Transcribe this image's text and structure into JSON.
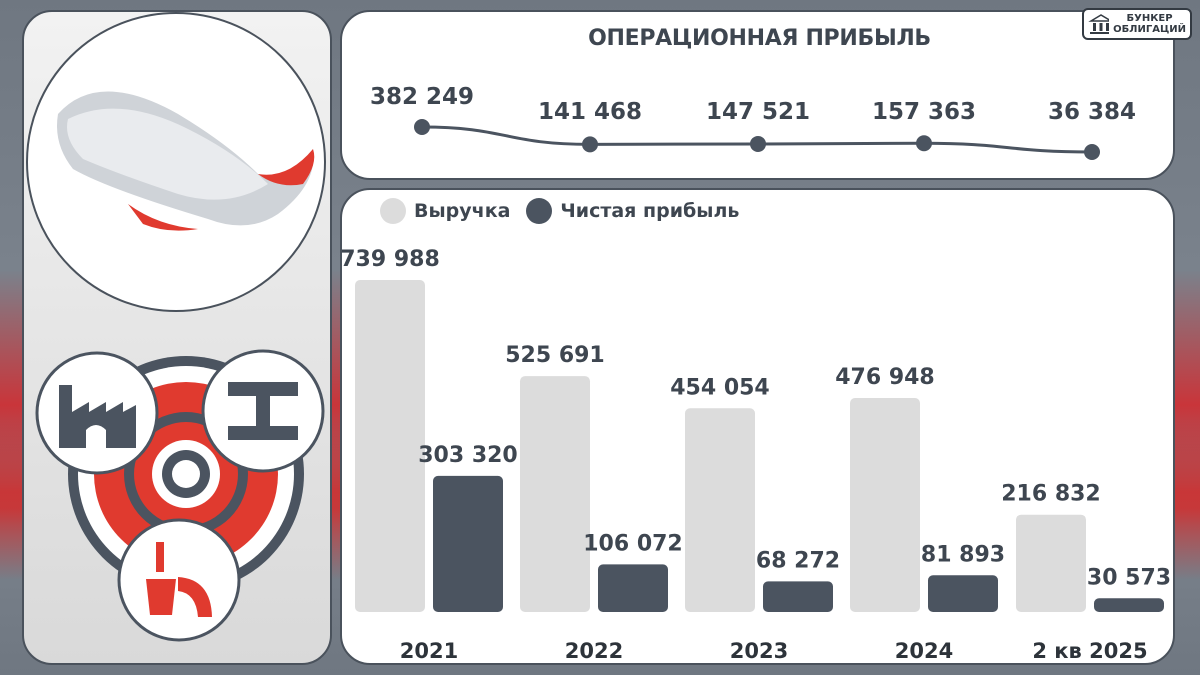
{
  "watermark": {
    "line1": "БУНКЕР",
    "line2": "ОБЛИГАЦИЙ"
  },
  "colors": {
    "revenue": "#dcdcdc",
    "net_profit": "#4b5460",
    "accent_red": "#e03a2f",
    "text": "#3e4650"
  },
  "chart_data": [
    {
      "type": "line",
      "title": "ОПЕРАЦИОННАЯ ПРИБЫЛЬ",
      "categories": [
        "2021",
        "2022",
        "2023",
        "2024",
        "2 кв 2025"
      ],
      "series": [
        {
          "values": [
            382249,
            141468,
            147521,
            157363,
            36384
          ]
        }
      ],
      "value_labels": [
        "382 249",
        "141 468",
        "147 521",
        "157 363",
        "36 384"
      ],
      "grid": false
    },
    {
      "type": "bar",
      "categories": [
        "2021",
        "2022",
        "2023",
        "2024",
        "2 кв 2025"
      ],
      "series": [
        {
          "name": "Выручка",
          "values": [
            739988,
            525691,
            454054,
            476948,
            216832
          ],
          "labels": [
            "739 988",
            "525 691",
            "454 054",
            "476 948",
            "216 832"
          ]
        },
        {
          "name": "Чистая прибыль",
          "values": [
            303320,
            106072,
            68272,
            81893,
            30573
          ],
          "labels": [
            "303 320",
            "106 072",
            "68 272",
            "81 893",
            "30 573"
          ]
        }
      ],
      "legend": "top-left",
      "grid": false,
      "ylim": [
        0,
        739988
      ]
    }
  ]
}
